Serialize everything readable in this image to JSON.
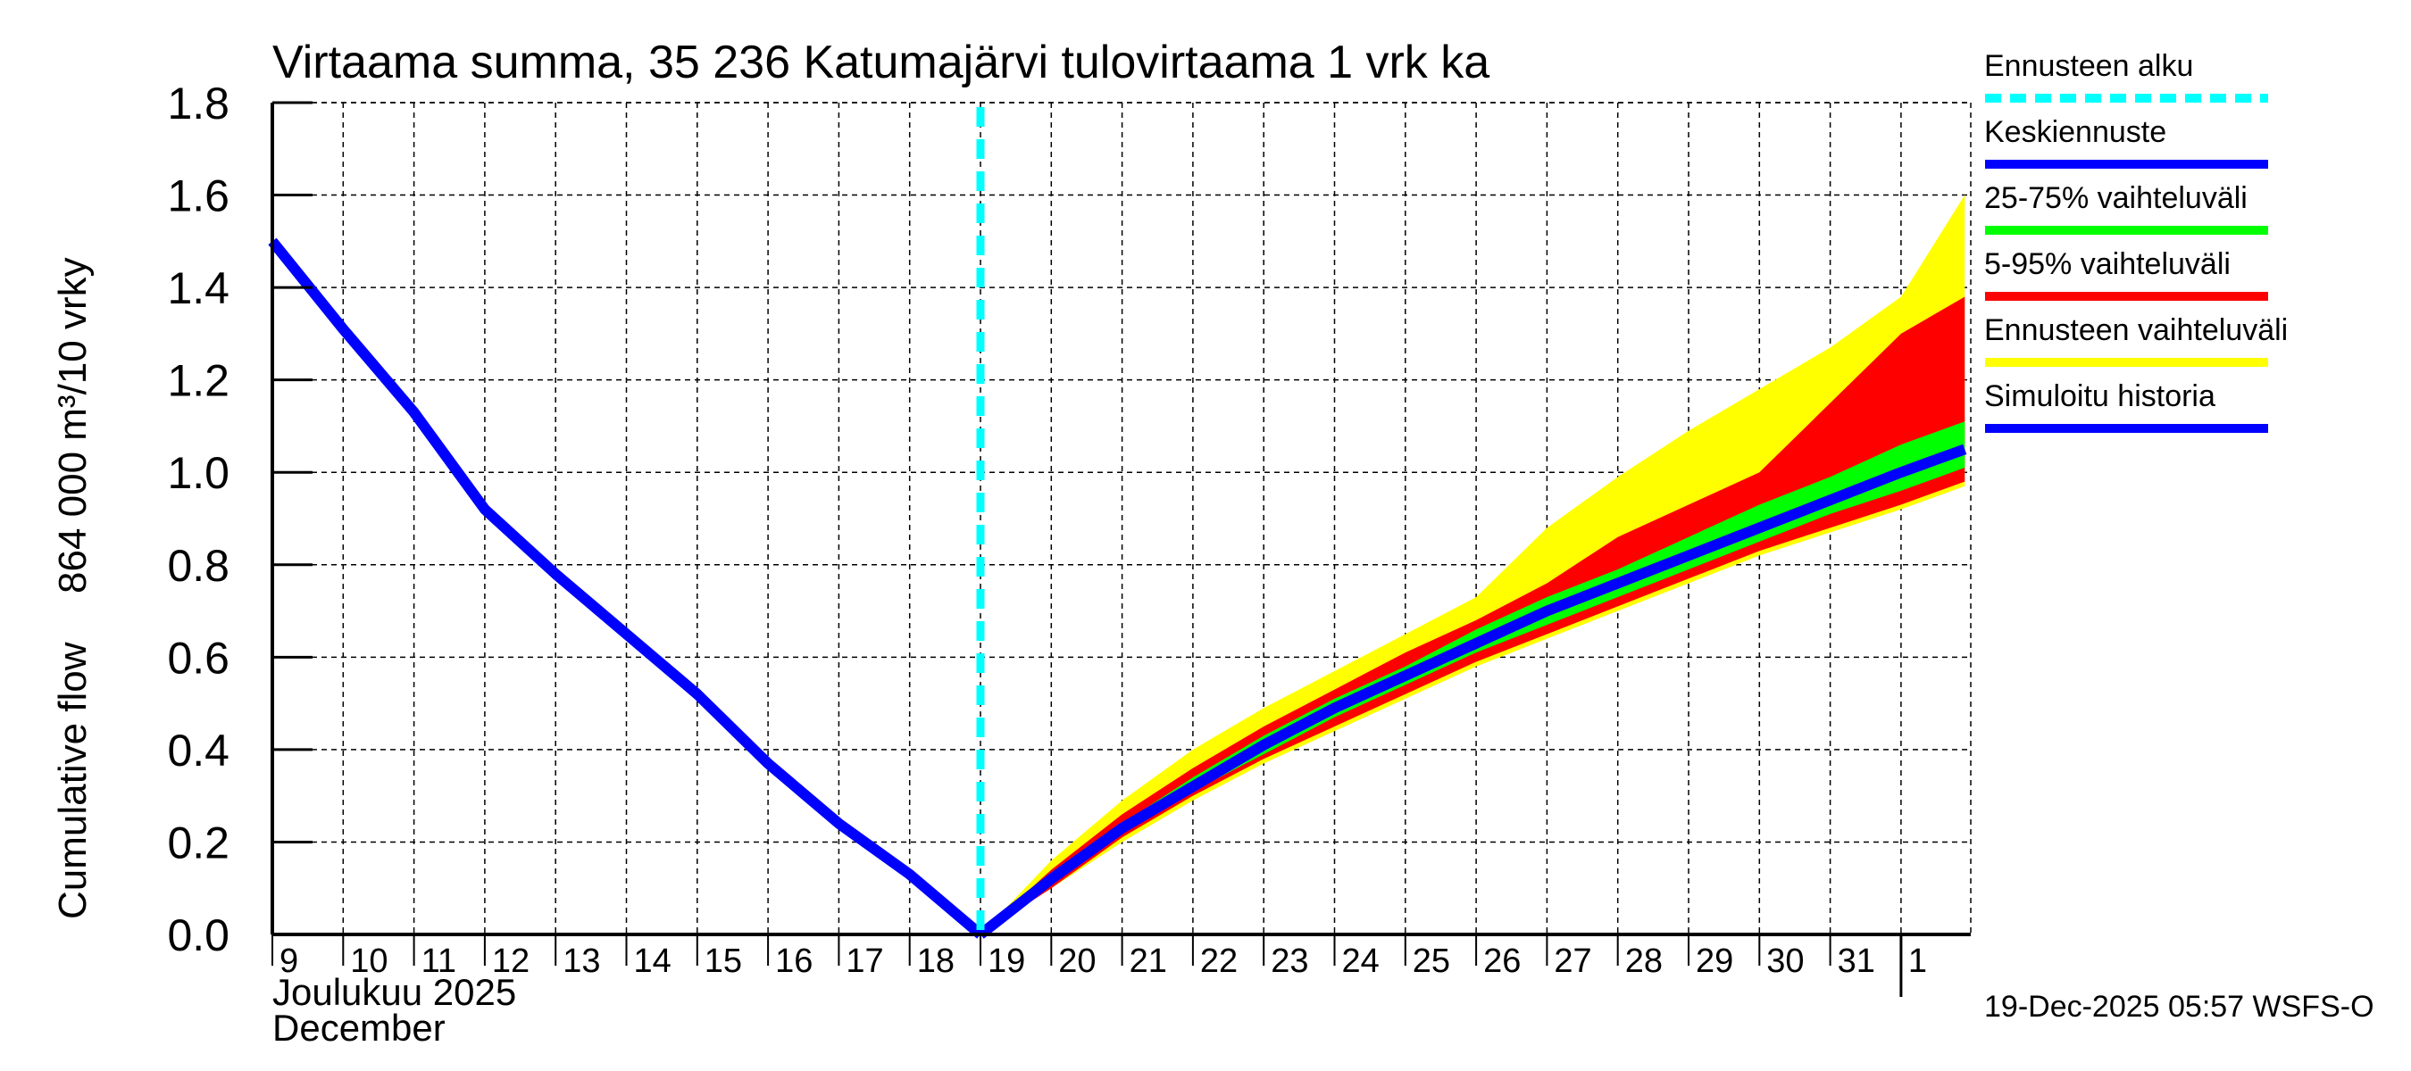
{
  "chart_data": {
    "type": "area",
    "title": "Virtaama summa, 35 236 Katumajärvi tulovirtaama 1 vrk ka",
    "ylabel": "Cumulative flow    864 000 m³/10 vrky",
    "ylabel_parts": [
      "Cumulative flow",
      "864 000 m³/10 vrky"
    ],
    "xlabel_line1": "Joulukuu  2025",
    "xlabel_line2": "December",
    "ylim": [
      0.0,
      1.8
    ],
    "yticks": [
      "0.0",
      "0.2",
      "0.4",
      "0.6",
      "0.8",
      "1.0",
      "1.2",
      "1.4",
      "1.6",
      "1.8"
    ],
    "x_ticks": [
      "9",
      "10",
      "11",
      "12",
      "13",
      "14",
      "15",
      "16",
      "17",
      "18",
      "19",
      "20",
      "21",
      "22",
      "23",
      "24",
      "25",
      "26",
      "27",
      "28",
      "29",
      "30",
      "31",
      "1"
    ],
    "grid": true,
    "forecast_start_day": 19,
    "series": [
      {
        "name": "Simuloitu historia",
        "color": "#0000ff",
        "x": [
          9,
          10,
          11,
          12,
          13,
          14,
          15,
          16,
          17,
          18,
          19
        ],
        "values": [
          1.5,
          1.31,
          1.13,
          0.92,
          0.78,
          0.65,
          0.52,
          0.37,
          0.24,
          0.13,
          0.0
        ]
      },
      {
        "name": "Keskiennuste",
        "color": "#0000ff",
        "x": [
          19,
          20,
          21,
          22,
          23,
          24,
          25,
          26,
          27,
          28,
          29,
          30,
          31,
          32,
          32.9
        ],
        "values": [
          0.0,
          0.12,
          0.23,
          0.32,
          0.41,
          0.49,
          0.56,
          0.63,
          0.7,
          0.76,
          0.82,
          0.88,
          0.94,
          1.0,
          1.05
        ]
      },
      {
        "name": "25-75% vaihteluväli",
        "color": "#00ff00",
        "x": [
          19,
          20,
          21,
          22,
          23,
          24,
          25,
          26,
          27,
          28,
          29,
          30,
          31,
          32,
          32.9
        ],
        "upper": [
          0.0,
          0.13,
          0.24,
          0.34,
          0.43,
          0.51,
          0.58,
          0.66,
          0.73,
          0.79,
          0.86,
          0.93,
          0.99,
          1.06,
          1.11
        ],
        "lower": [
          0.0,
          0.11,
          0.22,
          0.31,
          0.39,
          0.47,
          0.54,
          0.61,
          0.67,
          0.73,
          0.79,
          0.85,
          0.91,
          0.96,
          1.01
        ]
      },
      {
        "name": "5-95% vaihteluväli",
        "color": "#ff0000",
        "x": [
          19,
          20,
          21,
          22,
          23,
          24,
          25,
          26,
          27,
          28,
          29,
          30,
          31,
          32,
          32.9
        ],
        "upper": [
          0.0,
          0.14,
          0.26,
          0.36,
          0.45,
          0.53,
          0.61,
          0.68,
          0.76,
          0.86,
          0.93,
          1.0,
          1.15,
          1.3,
          1.38
        ],
        "lower": [
          0.0,
          0.1,
          0.21,
          0.3,
          0.38,
          0.45,
          0.52,
          0.59,
          0.65,
          0.71,
          0.77,
          0.83,
          0.88,
          0.93,
          0.98
        ]
      },
      {
        "name": "Ennusteen vaihteluväli",
        "color": "#ffff00",
        "x": [
          19,
          20,
          21,
          22,
          23,
          24,
          25,
          26,
          27,
          28,
          29,
          30,
          31,
          32,
          32.9
        ],
        "upper": [
          0.0,
          0.16,
          0.29,
          0.4,
          0.49,
          0.57,
          0.65,
          0.73,
          0.88,
          0.99,
          1.09,
          1.18,
          1.27,
          1.38,
          1.6
        ],
        "lower": [
          0.0,
          0.1,
          0.2,
          0.29,
          0.37,
          0.44,
          0.51,
          0.58,
          0.64,
          0.7,
          0.76,
          0.82,
          0.87,
          0.92,
          0.97
        ]
      }
    ]
  },
  "legend": {
    "items": [
      {
        "label": "Ennusteen alku",
        "color": "#00ffff",
        "style": "dashed"
      },
      {
        "label": "Keskiennuste",
        "color": "#0000ff",
        "style": "solid"
      },
      {
        "label": "25-75% vaihteluväli",
        "color": "#00ff00",
        "style": "solid"
      },
      {
        "label": "5-95% vaihteluväli",
        "color": "#ff0000",
        "style": "solid"
      },
      {
        "label": "Ennusteen vaihteluväli",
        "color": "#ffff00",
        "style": "solid"
      },
      {
        "label": "Simuloitu historia",
        "color": "#0000ff",
        "style": "solid"
      }
    ]
  },
  "footer": "19-Dec-2025 05:57 WSFS-O"
}
